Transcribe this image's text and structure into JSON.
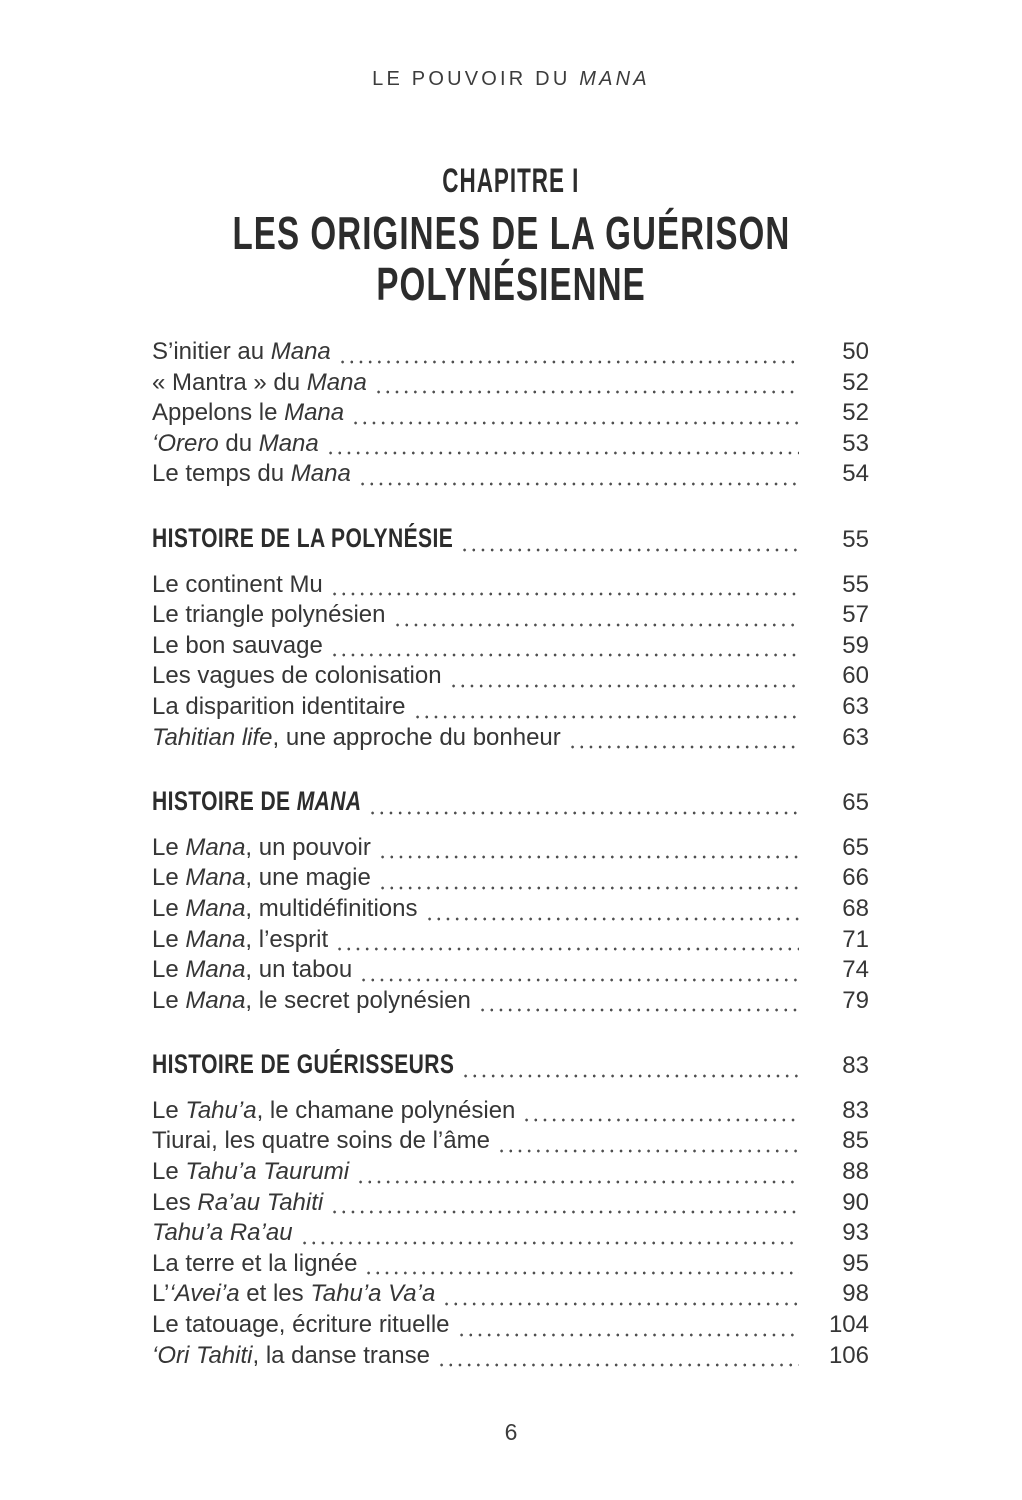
{
  "colors": {
    "bg": "#ffffff",
    "text": "#363636",
    "heading": "#2c2c2c",
    "dots": "#4f4f4f",
    "muted": "#3c3c3c"
  },
  "page": {
    "running_header": "LE POUVOIR DU *MANA*",
    "folio": "6"
  },
  "chapter": {
    "kicker": "CHAPITRE I",
    "title_lines": [
      "LES ORIGINES DE LA GUÉRISON",
      "POLYNÉSIENNE"
    ]
  },
  "toc": {
    "sections": [
      {
        "items": [
          {
            "label": "S’initier au *Mana*",
            "page": "50"
          },
          {
            "label": "« Mantra » du *Mana*",
            "page": "52"
          },
          {
            "label": "Appelons le *Mana*",
            "page": "52"
          },
          {
            "label": "*‘Orero* du *Mana*",
            "page": "53"
          },
          {
            "label": "Le temps du *Mana*",
            "page": "54"
          }
        ]
      },
      {
        "header": {
          "label": "HISTOIRE DE LA POLYNÉSIE",
          "page": "55"
        },
        "items": [
          {
            "label": "Le continent Mu",
            "page": "55"
          },
          {
            "label": "Le triangle polynésien",
            "page": "57"
          },
          {
            "label": "Le bon sauvage",
            "page": "59"
          },
          {
            "label": "Les vagues de colonisation",
            "page": "60"
          },
          {
            "label": "La disparition identitaire",
            "page": "63"
          },
          {
            "label": "*Tahitian life*, une approche du bonheur",
            "page": "63"
          }
        ]
      },
      {
        "header": {
          "label": "HISTOIRE DE *MANA*",
          "page": "65"
        },
        "items": [
          {
            "label": "Le *Mana*, un pouvoir",
            "page": "65"
          },
          {
            "label": "Le *Mana*, une magie",
            "page": "66"
          },
          {
            "label": "Le *Mana*, multidéfinitions",
            "page": "68"
          },
          {
            "label": "Le *Mana*, l’esprit",
            "page": "71"
          },
          {
            "label": "Le *Mana*, un tabou",
            "page": "74"
          },
          {
            "label": "Le *Mana*, le secret polynésien",
            "page": "79"
          }
        ]
      },
      {
        "header": {
          "label": "HISTOIRE DE GUÉRISSEURS",
          "page": "83"
        },
        "items": [
          {
            "label": "Le *Tahu’a*, le chamane polynésien",
            "page": "83"
          },
          {
            "label": "Tiurai, les quatre soins de l’âme",
            "page": "85"
          },
          {
            "label": "Le *Tahu’a Taurumi*",
            "page": "88"
          },
          {
            "label": "Les *Ra’au Tahiti*",
            "page": "90"
          },
          {
            "label": "*Tahu’a Ra’au*",
            "page": "93"
          },
          {
            "label": "La terre et la lignée",
            "page": "95"
          },
          {
            "label": "L’*‘Avei’a* et les *Tahu’a Va’a*",
            "page": "98"
          },
          {
            "label": "Le tatouage, écriture rituelle",
            "page": "104"
          },
          {
            "label": "*‘Ori Tahiti*, la danse transe",
            "page": "106"
          }
        ]
      }
    ]
  }
}
